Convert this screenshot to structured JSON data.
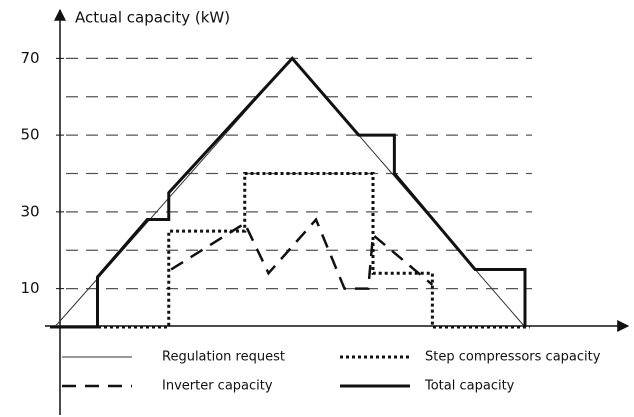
{
  "chart_data": {
    "type": "line",
    "y_label": "Actual capacity (kW)",
    "xlim": [
      0,
      120
    ],
    "ylim": [
      0,
      80
    ],
    "yticks": [
      10,
      30,
      50,
      70
    ],
    "ygrid": [
      10,
      20,
      30,
      40,
      50,
      60,
      70
    ],
    "grid": true,
    "legend": "bottom",
    "series": [
      {
        "name": "Regulation request",
        "color": "#333333",
        "style": "solid",
        "width": 1,
        "x": [
          1,
          51,
          100
        ],
        "values": [
          0,
          70,
          0
        ]
      },
      {
        "name": "Inverter capacity",
        "color": "#111111",
        "style": "dashed",
        "width": 2.5,
        "x": [
          25.5,
          41,
          46,
          56,
          62,
          67,
          68,
          80.5
        ],
        "values": [
          15,
          27,
          14,
          28,
          10,
          10,
          24,
          11
        ]
      },
      {
        "name": "Step compressors capacity",
        "color": "#111111",
        "style": "dotted",
        "width": 3,
        "x": [
          0,
          25,
          25,
          41,
          41,
          68,
          68,
          80.5,
          80.5,
          101
        ],
        "values": [
          0,
          0,
          25,
          25,
          40,
          40,
          14,
          14,
          0,
          0
        ]
      },
      {
        "name": "Total capacity",
        "color": "#111111",
        "style": "solid",
        "width": 3,
        "x": [
          0,
          10,
          10,
          20.5,
          25,
          25,
          51,
          65,
          72.5,
          72.5,
          89.5,
          100,
          100
        ],
        "values": [
          0,
          0,
          13,
          28,
          28,
          35,
          70,
          50,
          50,
          40,
          15,
          15,
          0
        ]
      }
    ]
  }
}
